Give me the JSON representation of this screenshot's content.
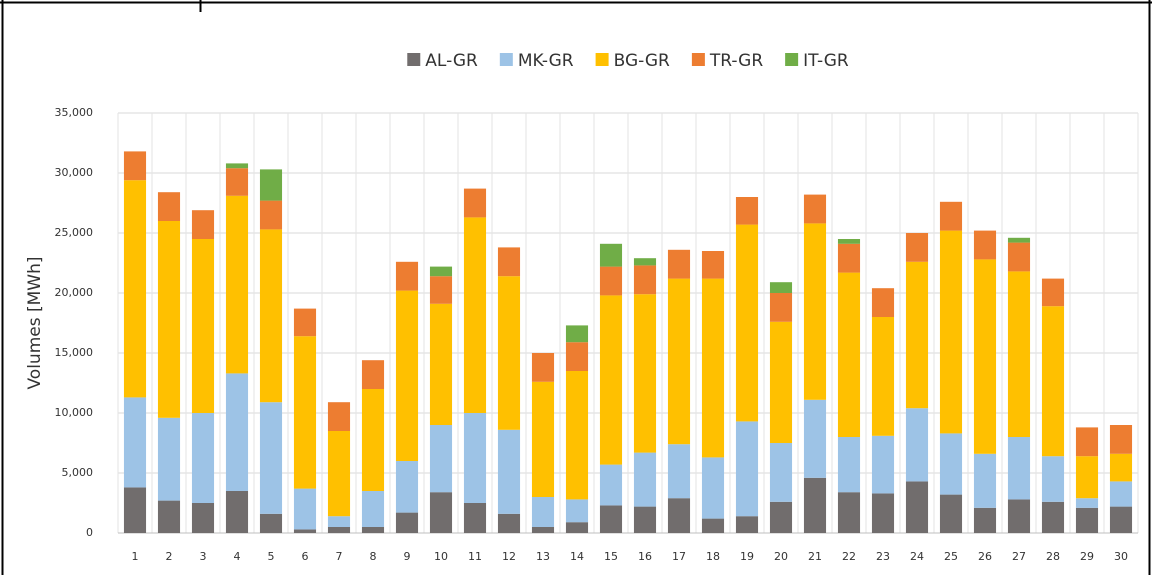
{
  "chart_data": {
    "type": "stacked-bar",
    "y_label": "Volumes [MWh]",
    "categories": [
      "1",
      "2",
      "3",
      "4",
      "5",
      "6",
      "7",
      "8",
      "9",
      "10",
      "11",
      "12",
      "13",
      "14",
      "15",
      "16",
      "17",
      "18",
      "19",
      "20",
      "21",
      "22",
      "23",
      "24",
      "25",
      "26",
      "27",
      "28",
      "29",
      "30"
    ],
    "series": [
      {
        "name": "AL-GR",
        "color": "#716d6d",
        "values": [
          3800,
          2700,
          2500,
          3500,
          1600,
          300,
          500,
          500,
          1700,
          3400,
          2500,
          1600,
          500,
          900,
          2300,
          2200,
          2900,
          1200,
          1400,
          2600,
          4600,
          3400,
          3300,
          4300,
          3200,
          2100,
          2800,
          2600,
          2100,
          2200
        ]
      },
      {
        "name": "MK-GR",
        "color": "#9dc3e6",
        "values": [
          7500,
          6900,
          7500,
          9800,
          9300,
          3400,
          900,
          3000,
          4300,
          5600,
          7500,
          7000,
          2500,
          1900,
          3400,
          4500,
          4500,
          5100,
          7900,
          4900,
          6500,
          4600,
          4800,
          6100,
          5100,
          4500,
          5200,
          3800,
          800,
          2100
        ]
      },
      {
        "name": "BG-GR",
        "color": "#ffc000",
        "values": [
          18100,
          16400,
          14500,
          14800,
          14400,
          12700,
          7100,
          8500,
          14200,
          10100,
          16300,
          12800,
          9600,
          10700,
          14100,
          13200,
          13800,
          14900,
          16400,
          10100,
          14700,
          13700,
          9900,
          12200,
          16900,
          16200,
          13800,
          12500,
          3500,
          2300
        ]
      },
      {
        "name": "TR-GR",
        "color": "#ed7d31",
        "values": [
          2400,
          2400,
          2400,
          2300,
          2400,
          2300,
          2400,
          2400,
          2400,
          2300,
          2400,
          2400,
          2400,
          2400,
          2400,
          2400,
          2400,
          2300,
          2300,
          2400,
          2400,
          2400,
          2400,
          2400,
          2400,
          2400,
          2400,
          2300,
          2400,
          2400
        ]
      },
      {
        "name": "IT-GR",
        "color": "#70ad47",
        "values": [
          0,
          0,
          0,
          400,
          2600,
          0,
          0,
          0,
          0,
          800,
          0,
          0,
          0,
          1400,
          1900,
          600,
          0,
          0,
          0,
          900,
          0,
          400,
          0,
          0,
          0,
          0,
          400,
          0,
          0,
          0
        ]
      }
    ],
    "ylim": [
      0,
      35000
    ],
    "yticks": [
      0,
      {
        "value": 5000,
        "label": "5,000"
      },
      {
        "value": 10000,
        "label": "10,000"
      },
      {
        "value": 15000,
        "label": "15,000"
      },
      {
        "value": 20000,
        "label": "20,000"
      },
      {
        "value": 25000,
        "label": "25,000"
      },
      {
        "value": 30000,
        "label": "30,000"
      },
      {
        "value": 35000,
        "label": "35,000"
      }
    ],
    "grid": true
  }
}
